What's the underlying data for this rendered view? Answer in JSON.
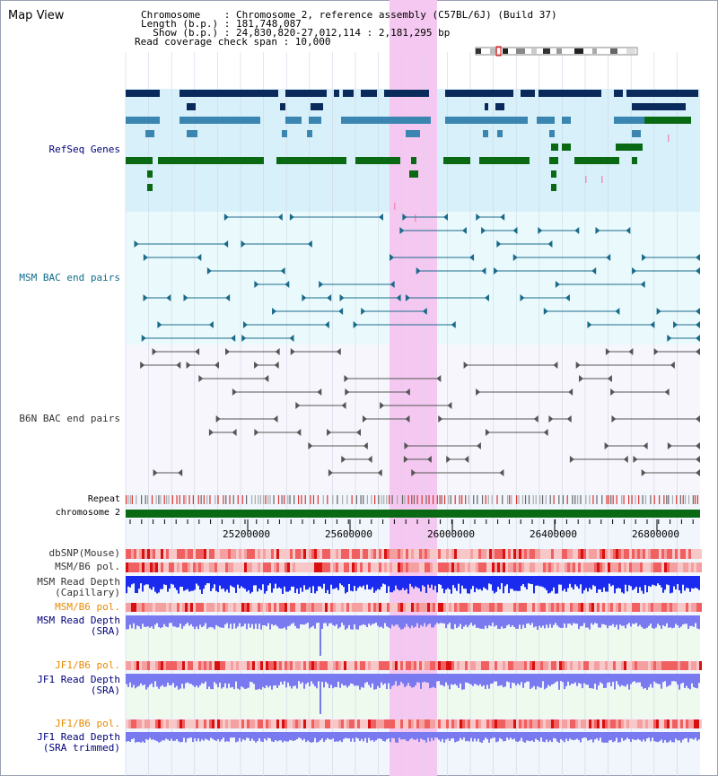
{
  "title": "Map View",
  "info": {
    "line1": "Chromosome    : Chromosome 2, reference assembly (C57BL/6J) (Build 37)",
    "line2": "Length (b.p.) : 181,748,087",
    "line3": "  Show (b.p.) : 24,830,820-27,012,114 : 2,181,295 bp",
    "line4": "Read coverage check span : 10,000"
  },
  "tracks": {
    "refseq": "RefSeq Genes",
    "msm_bac": "MSM BAC end pairs",
    "b6n_bac": "B6N BAC end pairs",
    "repeat": "Repeat",
    "chromosome": "chromosome 2",
    "dbsnp": "dbSNP(Mouse)",
    "msm_b6_pol_1": "MSM/B6 pol.",
    "msm_read_cap_1": "MSM Read Depth",
    "msm_read_cap_2": "(Capillary)",
    "msm_b6_pol_2": "MSM/B6 pol.",
    "msm_read_sra_1": "MSM Read Depth",
    "msm_read_sra_2": "(SRA)",
    "jf1_b6_pol_1": "JF1/B6 pol.",
    "jf1_read_sra_1": "JF1 Read Depth",
    "jf1_read_sra_2": "(SRA)",
    "jf1_b6_pol_2": "JF1/B6 pol.",
    "jf1_read_trim_1": "JF1 Read Depth",
    "jf1_read_trim_2": "(SRA trimmed)"
  },
  "axis_ticks": [
    "25200000",
    "25600000",
    "26000000",
    "26400000",
    "26800000"
  ],
  "colors": {
    "refseq_dark": "#0a2a5c",
    "refseq_mid": "#3a86b0",
    "refseq_green": "#0a6a14",
    "msm_bac_line": "#1a6a8a",
    "b6n_bac_line": "#555555",
    "chromosome_bar": "#0a6a14",
    "highlight": "#f4c8f0",
    "capillary_depth": "#1a2aee",
    "sra_depth": "#7a7af0",
    "pol_red": "#e83030",
    "label_navy": "#00007a",
    "label_teal": "#106a8a",
    "label_orange": "#e88a00",
    "label_gray": "#333333"
  }
}
